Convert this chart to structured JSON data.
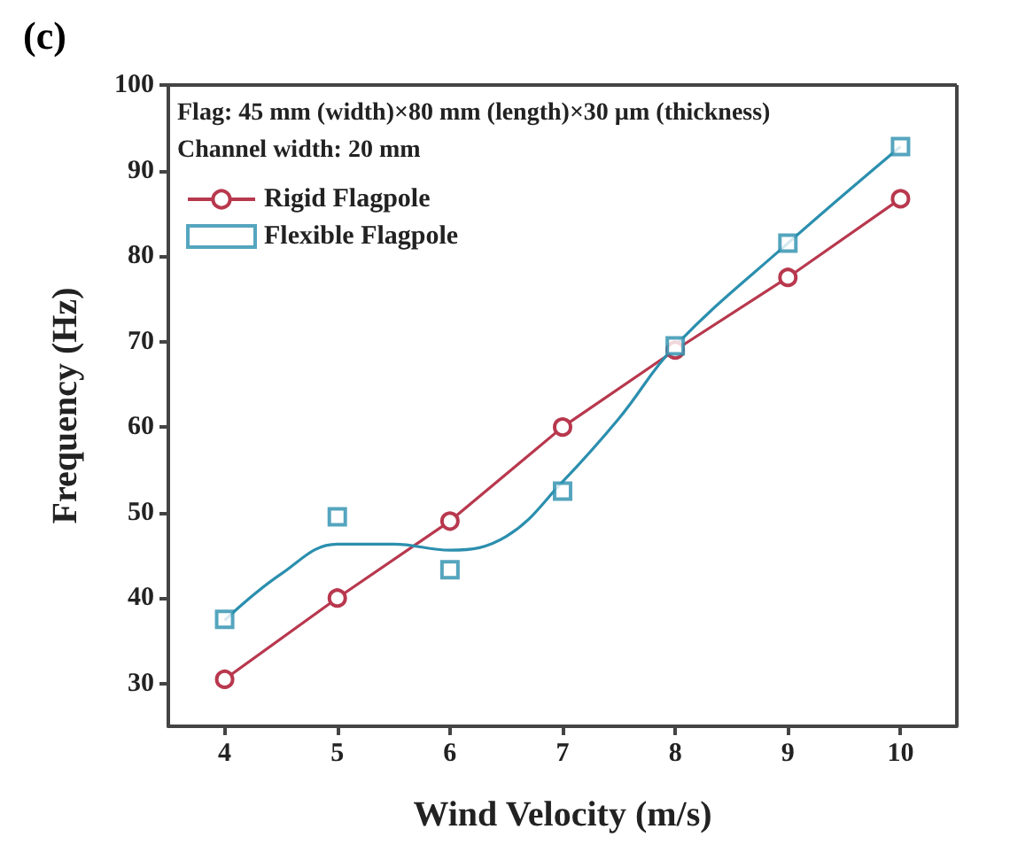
{
  "chart_data": {
    "type": "line",
    "title": "(c)",
    "xlabel": "Wind Velocity (m/s)",
    "ylabel": "Frequency (Hz)",
    "annotations": [
      "Flag: 45 mm (width)×80 mm (length)×30 µm (thickness)",
      "Channel width: 20 mm"
    ],
    "x": [
      4,
      5,
      6,
      7,
      8,
      9,
      10
    ],
    "series": [
      {
        "name": "Rigid Flagpole",
        "color": "#b8384e",
        "values": [
          30.5,
          40,
          49,
          60,
          69,
          77.5,
          86.7
        ],
        "marker": "circle"
      },
      {
        "name": "Flexible Flagpole",
        "type": "scatter",
        "color": "#2b8fae",
        "values": [
          37.5,
          49.5,
          43.3,
          52.5,
          69.5,
          81.5,
          92.8
        ],
        "marker": "square"
      },
      {
        "type": "line",
        "color": "#2b8fae",
        "x": [
          4,
          4.5,
          5,
          5.5,
          6,
          6.5,
          7,
          7.5,
          8,
          9,
          10
        ],
        "values": [
          37.4,
          42.8,
          46.3,
          46.3,
          45.6,
          47.2,
          53.6,
          61,
          69.5,
          81.5,
          92.8
        ],
        "marker": "none"
      }
    ],
    "xlim": [
      3.5,
      10.5
    ],
    "xticks": [
      4,
      5,
      6,
      7,
      8,
      9,
      10
    ],
    "ylim": [
      25,
      100
    ],
    "yticks": [
      30,
      40,
      50,
      60,
      70,
      80,
      90,
      100
    ],
    "grid": false,
    "legend": "top left",
    "line_style": "solid"
  }
}
